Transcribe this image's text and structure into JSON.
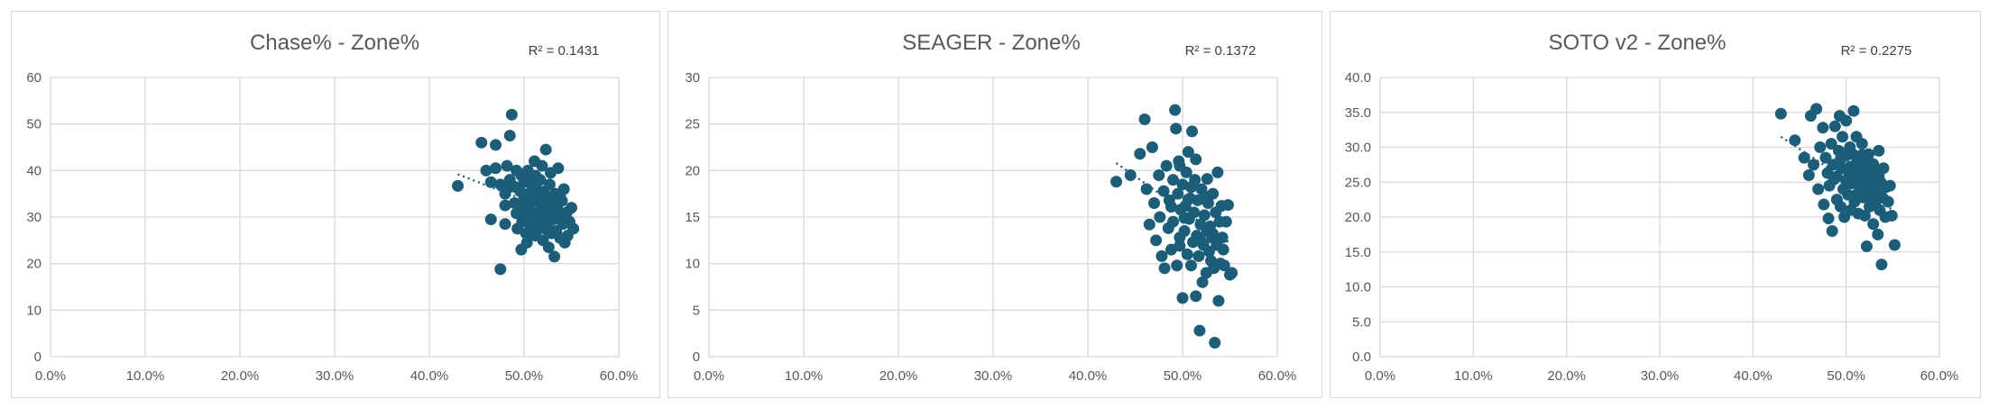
{
  "colors": {
    "marker": "#1b5e7a",
    "trendline": "#1b5e7a",
    "grid": "#d9d9d9",
    "text": "#595959",
    "border": "#d9d9d9"
  },
  "chart_data": [
    {
      "type": "scatter",
      "title": "Chase% - Zone%",
      "annotation": "R² = 0.1431",
      "x_ticks": [
        "0.0%",
        "10.0%",
        "20.0%",
        "30.0%",
        "40.0%",
        "50.0%",
        "60.0%"
      ],
      "y_ticks": [
        "0",
        "10",
        "20",
        "30",
        "40",
        "50",
        "60"
      ],
      "xlim": [
        0,
        0.6
      ],
      "ylim": [
        0,
        60
      ],
      "grid": true,
      "trendline": {
        "type": "linear",
        "x": [
          0.43,
          0.55
        ],
        "y": [
          39.2,
          29.8
        ]
      },
      "points": [
        [
          0.43,
          36.7
        ],
        [
          0.455,
          46
        ],
        [
          0.46,
          40
        ],
        [
          0.465,
          37.5
        ],
        [
          0.465,
          29.5
        ],
        [
          0.47,
          45.5
        ],
        [
          0.47,
          40.5
        ],
        [
          0.475,
          18.8
        ],
        [
          0.475,
          37
        ],
        [
          0.48,
          35
        ],
        [
          0.48,
          28.5
        ],
        [
          0.482,
          41
        ],
        [
          0.485,
          47.5
        ],
        [
          0.485,
          38
        ],
        [
          0.487,
          52
        ],
        [
          0.49,
          36.5
        ],
        [
          0.49,
          33
        ],
        [
          0.492,
          40
        ],
        [
          0.493,
          27.5
        ],
        [
          0.495,
          31
        ],
        [
          0.496,
          35.5
        ],
        [
          0.497,
          23
        ],
        [
          0.498,
          29
        ],
        [
          0.5,
          37.5
        ],
        [
          0.5,
          33
        ],
        [
          0.5,
          30.5
        ],
        [
          0.502,
          26.5
        ],
        [
          0.503,
          24.5
        ],
        [
          0.504,
          40
        ],
        [
          0.505,
          35
        ],
        [
          0.506,
          31.5
        ],
        [
          0.507,
          28
        ],
        [
          0.508,
          38.5
        ],
        [
          0.51,
          33.5
        ],
        [
          0.51,
          29.5
        ],
        [
          0.511,
          42
        ],
        [
          0.512,
          26
        ],
        [
          0.513,
          36
        ],
        [
          0.514,
          31
        ],
        [
          0.515,
          34
        ],
        [
          0.516,
          27.5
        ],
        [
          0.517,
          38
        ],
        [
          0.518,
          32
        ],
        [
          0.52,
          29
        ],
        [
          0.52,
          25
        ],
        [
          0.521,
          35.5
        ],
        [
          0.522,
          30.5
        ],
        [
          0.523,
          44.5
        ],
        [
          0.524,
          33
        ],
        [
          0.525,
          28
        ],
        [
          0.526,
          23.5
        ],
        [
          0.527,
          37
        ],
        [
          0.528,
          31.5
        ],
        [
          0.529,
          26.5
        ],
        [
          0.53,
          34
        ],
        [
          0.531,
          29.5
        ],
        [
          0.532,
          21.5
        ],
        [
          0.533,
          35
        ],
        [
          0.534,
          27
        ],
        [
          0.535,
          32
        ],
        [
          0.536,
          40.5
        ],
        [
          0.537,
          30
        ],
        [
          0.538,
          25.5
        ],
        [
          0.54,
          33.5
        ],
        [
          0.541,
          28.5
        ],
        [
          0.542,
          36
        ],
        [
          0.543,
          24.5
        ],
        [
          0.545,
          31
        ],
        [
          0.546,
          26
        ],
        [
          0.548,
          29
        ],
        [
          0.55,
          32
        ],
        [
          0.552,
          27.5
        ],
        [
          0.497,
          39
        ],
        [
          0.509,
          36.5
        ],
        [
          0.519,
          41
        ],
        [
          0.528,
          39.5
        ],
        [
          0.515,
          28.7
        ],
        [
          0.505,
          32.2
        ],
        [
          0.492,
          30.8
        ],
        [
          0.538,
          34.5
        ],
        [
          0.501,
          34.1
        ],
        [
          0.512,
          38.9
        ],
        [
          0.524,
          27.3
        ],
        [
          0.48,
          32.5
        ],
        [
          0.486,
          36.5
        ],
        [
          0.522,
          34.8
        ],
        [
          0.532,
          33.2
        ],
        [
          0.544,
          30.1
        ]
      ]
    },
    {
      "type": "scatter",
      "title": "SEAGER - Zone%",
      "annotation": "R² = 0.1372",
      "x_ticks": [
        "0.0%",
        "10.0%",
        "20.0%",
        "30.0%",
        "40.0%",
        "50.0%",
        "60.0%"
      ],
      "y_ticks": [
        "0",
        "5",
        "10",
        "15",
        "20",
        "25",
        "30"
      ],
      "xlim": [
        0,
        0.6
      ],
      "ylim": [
        0,
        30
      ],
      "grid": true,
      "trendline": {
        "type": "linear",
        "x": [
          0.43,
          0.55
        ],
        "y": [
          20.8,
          12.2
        ]
      },
      "points": [
        [
          0.43,
          18.8
        ],
        [
          0.445,
          19.5
        ],
        [
          0.455,
          21.8
        ],
        [
          0.46,
          25.5
        ],
        [
          0.462,
          18
        ],
        [
          0.465,
          14.2
        ],
        [
          0.468,
          22.5
        ],
        [
          0.47,
          16.5
        ],
        [
          0.472,
          12.5
        ],
        [
          0.475,
          19.5
        ],
        [
          0.476,
          15
        ],
        [
          0.478,
          10.8
        ],
        [
          0.48,
          17.8
        ],
        [
          0.481,
          9.5
        ],
        [
          0.483,
          20.5
        ],
        [
          0.485,
          13.8
        ],
        [
          0.486,
          16.8
        ],
        [
          0.488,
          11.5
        ],
        [
          0.49,
          19
        ],
        [
          0.49,
          14.5
        ],
        [
          0.492,
          26.5
        ],
        [
          0.493,
          24.5
        ],
        [
          0.494,
          9.8
        ],
        [
          0.495,
          17.5
        ],
        [
          0.496,
          21
        ],
        [
          0.497,
          12.8
        ],
        [
          0.498,
          15.8
        ],
        [
          0.5,
          18.5
        ],
        [
          0.5,
          6.3
        ],
        [
          0.502,
          13.5
        ],
        [
          0.503,
          16.2
        ],
        [
          0.504,
          19.8
        ],
        [
          0.505,
          11
        ],
        [
          0.506,
          22
        ],
        [
          0.507,
          14.8
        ],
        [
          0.508,
          17
        ],
        [
          0.509,
          9.8
        ],
        [
          0.51,
          24.2
        ],
        [
          0.511,
          12.3
        ],
        [
          0.512,
          15.5
        ],
        [
          0.513,
          19
        ],
        [
          0.514,
          6.5
        ],
        [
          0.515,
          13
        ],
        [
          0.516,
          16.8
        ],
        [
          0.517,
          10.8
        ],
        [
          0.518,
          2.8
        ],
        [
          0.519,
          14.2
        ],
        [
          0.52,
          18
        ],
        [
          0.521,
          8
        ],
        [
          0.522,
          12
        ],
        [
          0.523,
          15.2
        ],
        [
          0.524,
          17.2
        ],
        [
          0.525,
          9
        ],
        [
          0.526,
          13.5
        ],
        [
          0.527,
          16.5
        ],
        [
          0.528,
          11.3
        ],
        [
          0.529,
          14
        ],
        [
          0.53,
          10.3
        ],
        [
          0.531,
          12.8
        ],
        [
          0.532,
          17.5
        ],
        [
          0.533,
          9.5
        ],
        [
          0.534,
          1.5
        ],
        [
          0.535,
          15.5
        ],
        [
          0.536,
          12
        ],
        [
          0.537,
          19.8
        ],
        [
          0.538,
          6
        ],
        [
          0.539,
          14.5
        ],
        [
          0.54,
          10
        ],
        [
          0.541,
          16.2
        ],
        [
          0.542,
          12.8
        ],
        [
          0.544,
          9.8
        ],
        [
          0.546,
          14.5
        ],
        [
          0.548,
          16.3
        ],
        [
          0.55,
          8.8
        ],
        [
          0.552,
          9
        ],
        [
          0.497,
          20.5
        ],
        [
          0.509,
          18.2
        ],
        [
          0.514,
          21.2
        ],
        [
          0.502,
          14.9
        ],
        [
          0.526,
          19.1
        ],
        [
          0.488,
          16.1
        ],
        [
          0.519,
          12.5
        ],
        [
          0.532,
          13.2
        ],
        [
          0.506,
          16.9
        ],
        [
          0.543,
          11.5
        ],
        [
          0.497,
          11.9
        ]
      ]
    },
    {
      "type": "scatter",
      "title": "SOTO v2 - Zone%",
      "annotation": "R² = 0.2275",
      "x_ticks": [
        "0.0%",
        "10.0%",
        "20.0%",
        "30.0%",
        "40.0%",
        "50.0%",
        "60.0%"
      ],
      "y_ticks": [
        "0.0",
        "5.0",
        "10.0",
        "15.0",
        "20.0",
        "25.0",
        "30.0",
        "35.0",
        "40.0"
      ],
      "xlim": [
        0,
        0.6
      ],
      "ylim": [
        0,
        40
      ],
      "grid": true,
      "trendline": {
        "type": "linear",
        "x": [
          0.43,
          0.55
        ],
        "y": [
          31.5,
          21
        ]
      },
      "points": [
        [
          0.43,
          34.8
        ],
        [
          0.445,
          31
        ],
        [
          0.455,
          28.5
        ],
        [
          0.46,
          26
        ],
        [
          0.462,
          34.5
        ],
        [
          0.465,
          27.5
        ],
        [
          0.468,
          35.5
        ],
        [
          0.47,
          24
        ],
        [
          0.472,
          30
        ],
        [
          0.475,
          32.8
        ],
        [
          0.476,
          21.8
        ],
        [
          0.478,
          28.5
        ],
        [
          0.48,
          26.3
        ],
        [
          0.481,
          19.8
        ],
        [
          0.482,
          24.5
        ],
        [
          0.484,
          30.5
        ],
        [
          0.485,
          18
        ],
        [
          0.486,
          27.5
        ],
        [
          0.488,
          33
        ],
        [
          0.49,
          22.5
        ],
        [
          0.49,
          25.8
        ],
        [
          0.492,
          29.5
        ],
        [
          0.493,
          34.5
        ],
        [
          0.494,
          21.5
        ],
        [
          0.495,
          27
        ],
        [
          0.496,
          31.5
        ],
        [
          0.497,
          24
        ],
        [
          0.498,
          20
        ],
        [
          0.5,
          28.8
        ],
        [
          0.5,
          33.8
        ],
        [
          0.502,
          23.2
        ],
        [
          0.503,
          26.2
        ],
        [
          0.504,
          30
        ],
        [
          0.505,
          21
        ],
        [
          0.506,
          24.8
        ],
        [
          0.507,
          29
        ],
        [
          0.508,
          35.2
        ],
        [
          0.509,
          22.2
        ],
        [
          0.51,
          27.5
        ],
        [
          0.511,
          31.5
        ],
        [
          0.512,
          25
        ],
        [
          0.513,
          20.5
        ],
        [
          0.514,
          28.2
        ],
        [
          0.515,
          23.8
        ],
        [
          0.516,
          26.8
        ],
        [
          0.517,
          30.5
        ],
        [
          0.518,
          22.8
        ],
        [
          0.519,
          25.8
        ],
        [
          0.52,
          20.2
        ],
        [
          0.521,
          27.8
        ],
        [
          0.522,
          15.8
        ],
        [
          0.523,
          24
        ],
        [
          0.524,
          29
        ],
        [
          0.525,
          21.5
        ],
        [
          0.526,
          26
        ],
        [
          0.527,
          23
        ],
        [
          0.528,
          27
        ],
        [
          0.529,
          19
        ],
        [
          0.53,
          24.8
        ],
        [
          0.531,
          22
        ],
        [
          0.532,
          26.5
        ],
        [
          0.533,
          23.5
        ],
        [
          0.534,
          17.5
        ],
        [
          0.535,
          29.5
        ],
        [
          0.536,
          21
        ],
        [
          0.537,
          25
        ],
        [
          0.538,
          13.2
        ],
        [
          0.539,
          22.8
        ],
        [
          0.54,
          27
        ],
        [
          0.542,
          20
        ],
        [
          0.543,
          24.3
        ],
        [
          0.545,
          22.2
        ],
        [
          0.547,
          24.5
        ],
        [
          0.549,
          20.2
        ],
        [
          0.552,
          16
        ],
        [
          0.5,
          25.2
        ],
        [
          0.509,
          26.1
        ],
        [
          0.517,
          28.9
        ],
        [
          0.526,
          22.7
        ],
        [
          0.504,
          27.2
        ],
        [
          0.494,
          28.3
        ],
        [
          0.521,
          24.6
        ],
        [
          0.535,
          25.9
        ],
        [
          0.512,
          23.3
        ],
        [
          0.487,
          25.4
        ],
        [
          0.529,
          27.6
        ]
      ]
    }
  ]
}
